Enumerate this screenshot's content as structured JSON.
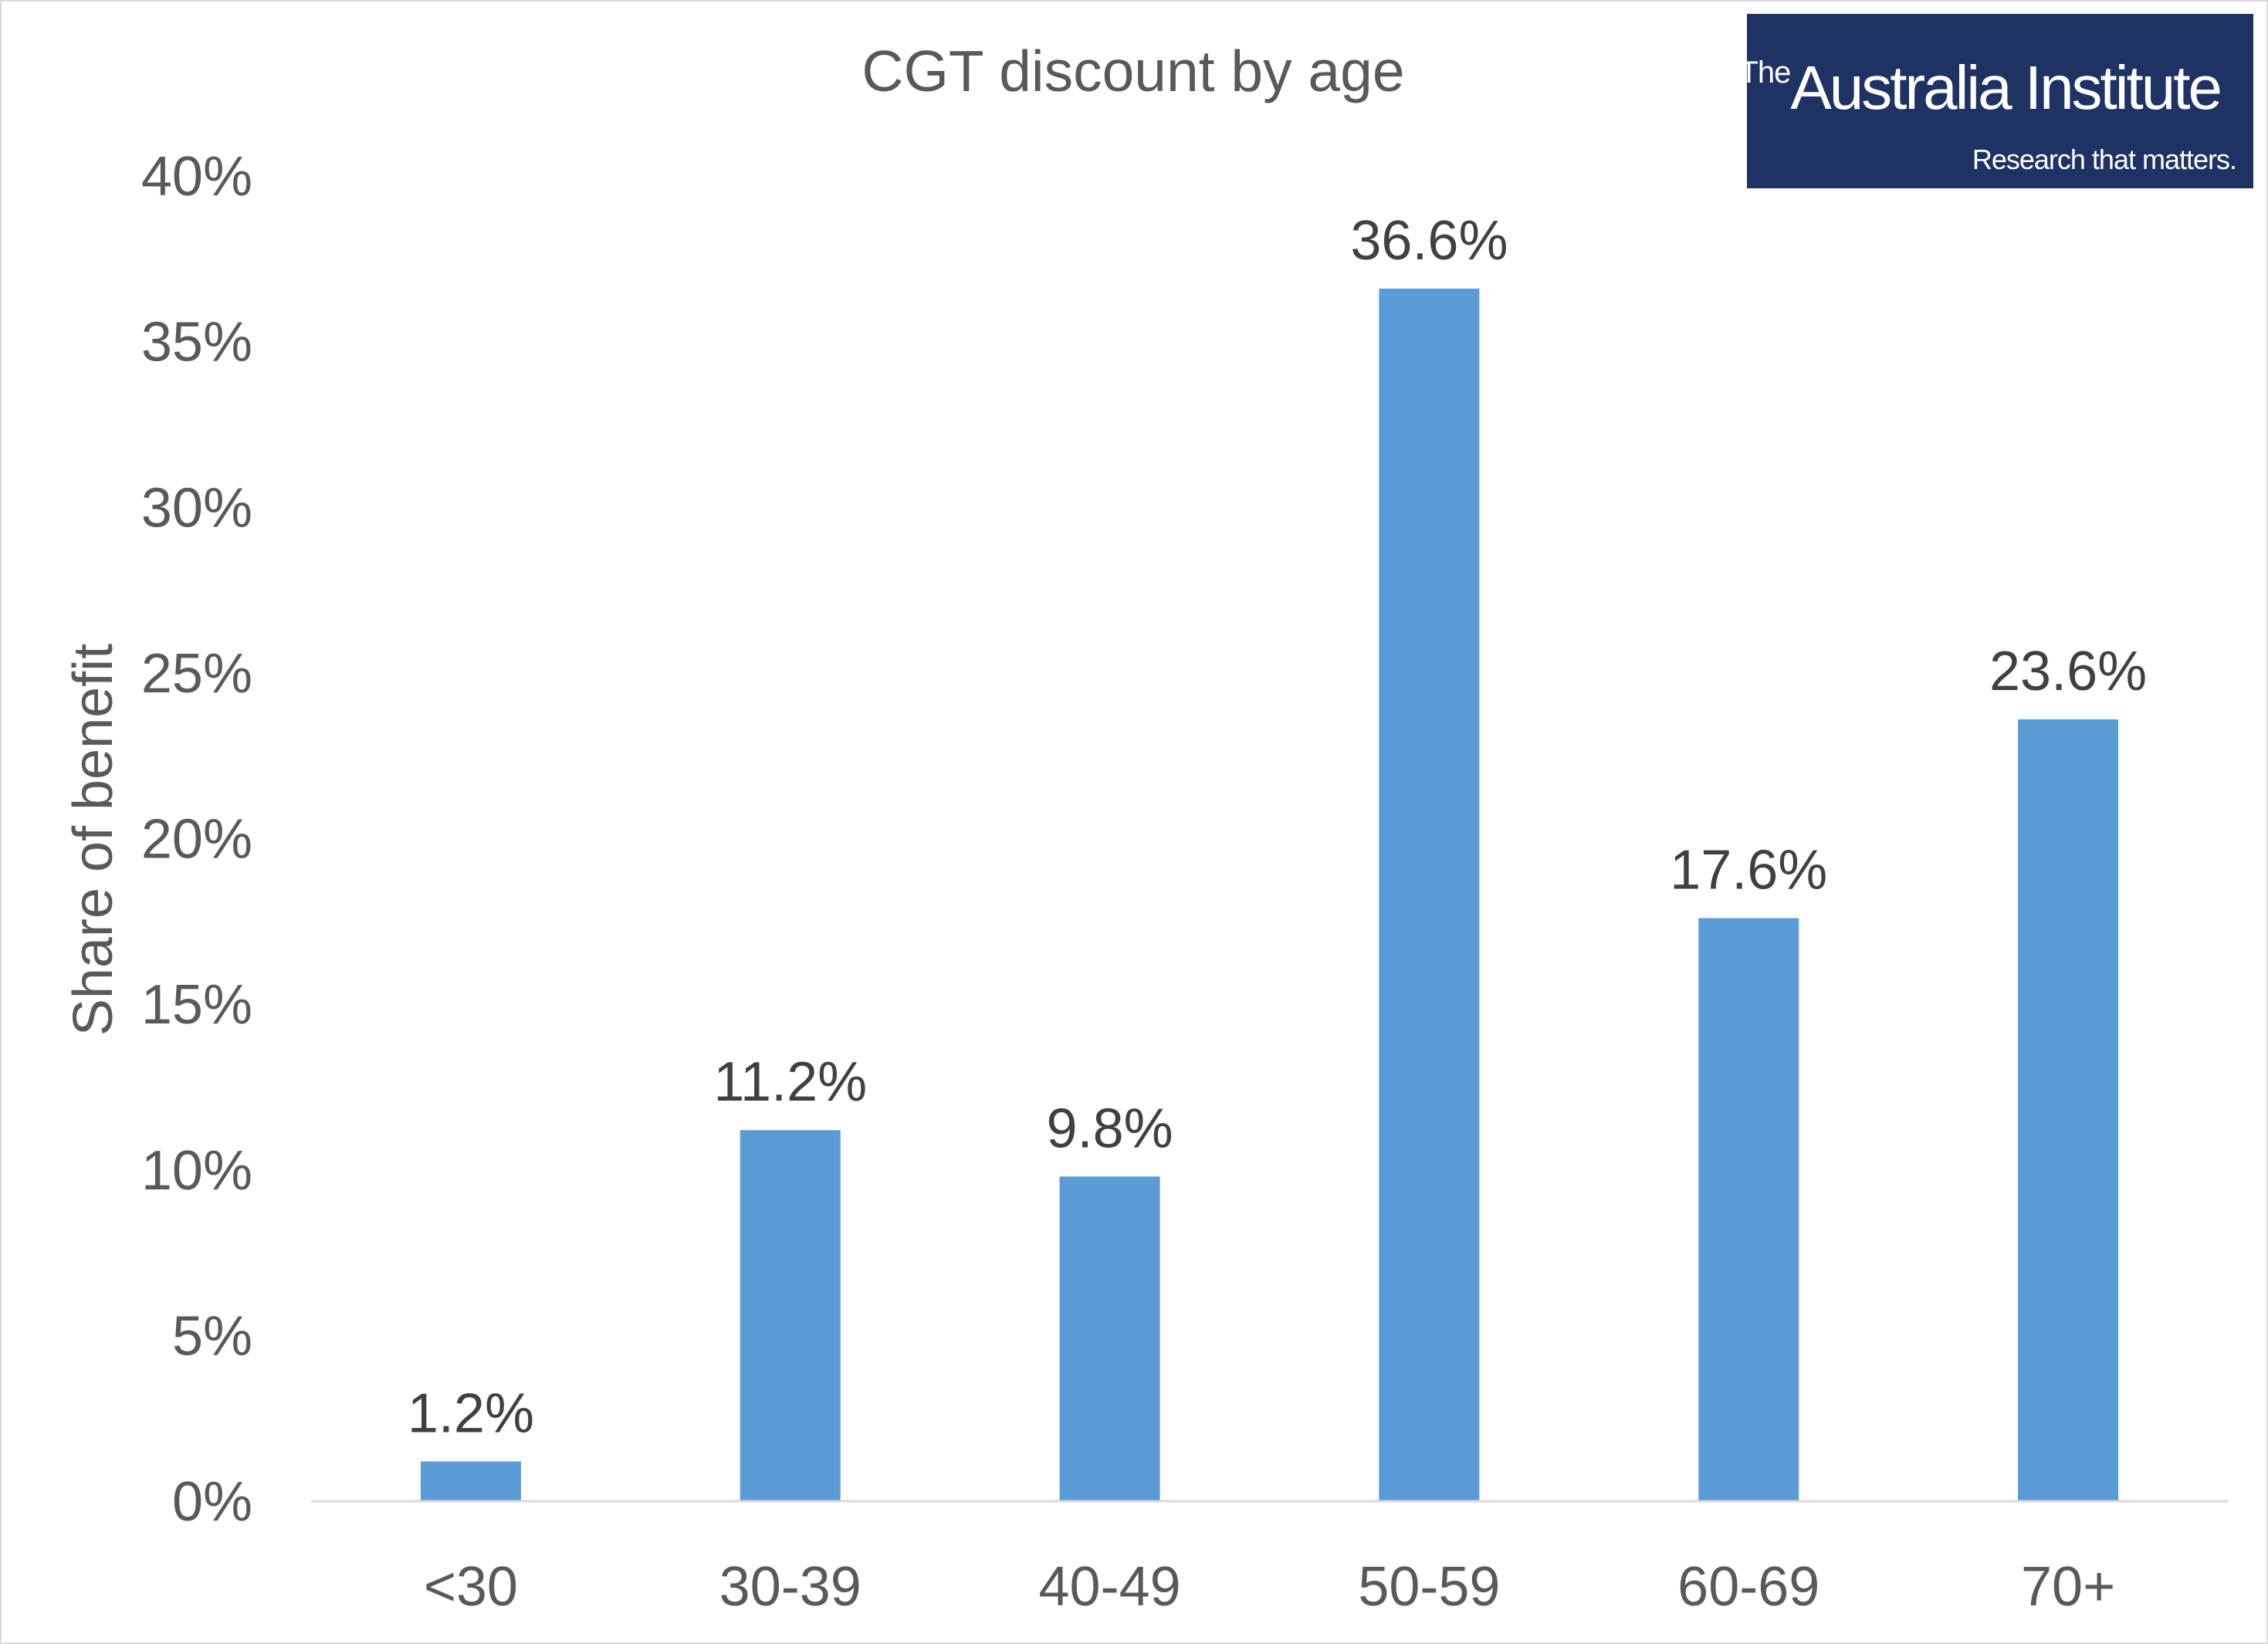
{
  "logo": {
    "the": "The",
    "name": "Australia Institute",
    "tagline": "Research that matters."
  },
  "colors": {
    "bar": "#5b9bd5",
    "logo_background": "#1e3264",
    "axis_text": "#595959",
    "axis_line": "#d9d9d9"
  },
  "chart_data": {
    "type": "bar",
    "title": "CGT discount by age",
    "xlabel": "",
    "ylabel": "Share of benefit",
    "categories": [
      "<30",
      "30-39",
      "40-49",
      "50-59",
      "60-69",
      "70+"
    ],
    "values": [
      1.2,
      11.2,
      9.8,
      36.6,
      17.6,
      23.6
    ],
    "data_labels": [
      "1.2%",
      "11.2%",
      "9.8%",
      "36.6%",
      "17.6%",
      "23.6%"
    ],
    "ylim": [
      0,
      40
    ],
    "y_ticks": [
      0,
      5,
      10,
      15,
      20,
      25,
      30,
      35,
      40
    ],
    "y_tick_labels": [
      "0%",
      "5%",
      "10%",
      "15%",
      "20%",
      "25%",
      "30%",
      "35%",
      "40%"
    ],
    "grid": false,
    "legend": "none"
  }
}
